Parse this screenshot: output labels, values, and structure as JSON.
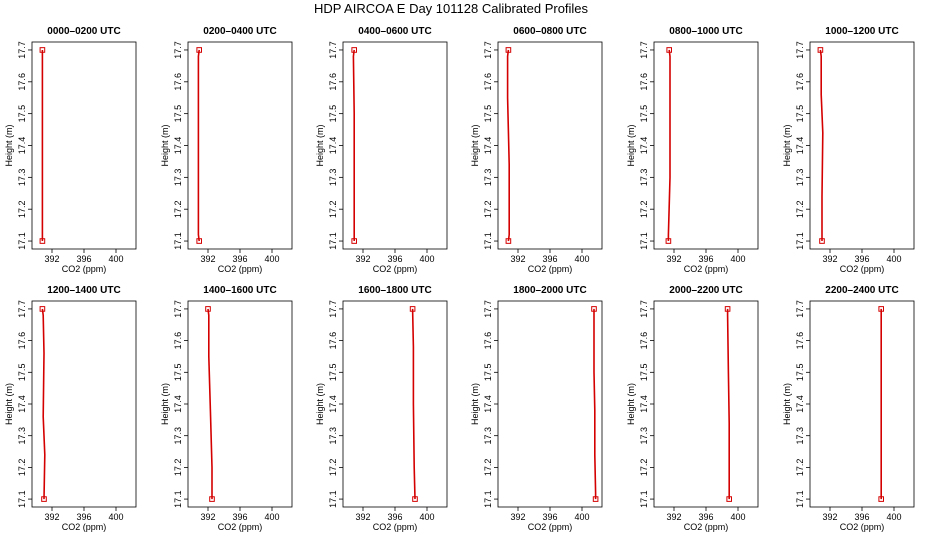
{
  "page_title": "HDP AIRCOA E  Day 101128  Calibrated Profiles",
  "shared_axes": {
    "xlabel": "CO2 (ppm)",
    "ylabel": "Height (m)",
    "xlim": [
      389.5,
      402.5
    ],
    "ylim": [
      17.075,
      17.725
    ],
    "x_ticks": [
      392,
      396,
      400
    ],
    "y_ticks": [
      17.1,
      17.2,
      17.3,
      17.4,
      17.5,
      17.6,
      17.7
    ],
    "line_color": "#d40000",
    "marker_color": "#d40000",
    "grid": false
  },
  "chart_data": [
    {
      "type": "line",
      "title": "0000–0200 UTC",
      "xlabel": "CO2 (ppm)",
      "ylabel": "Height (m)",
      "points": [
        {
          "x": 390.8,
          "y": 17.7
        },
        {
          "x": 390.8,
          "y": 17.1
        }
      ]
    },
    {
      "type": "line",
      "title": "0200–0400 UTC",
      "xlabel": "CO2 (ppm)",
      "ylabel": "Height (m)",
      "points": [
        {
          "x": 390.9,
          "y": 17.7
        },
        {
          "x": 390.8,
          "y": 17.68
        },
        {
          "x": 390.8,
          "y": 17.12
        },
        {
          "x": 390.9,
          "y": 17.1
        }
      ]
    },
    {
      "type": "line",
      "title": "0400–0600 UTC",
      "xlabel": "CO2 (ppm)",
      "ylabel": "Height (m)",
      "points": [
        {
          "x": 390.9,
          "y": 17.7
        },
        {
          "x": 390.8,
          "y": 17.68
        },
        {
          "x": 390.9,
          "y": 17.5
        },
        {
          "x": 390.9,
          "y": 17.12
        },
        {
          "x": 390.9,
          "y": 17.1
        }
      ]
    },
    {
      "type": "line",
      "title": "0600–0800 UTC",
      "xlabel": "CO2 (ppm)",
      "ylabel": "Height (m)",
      "points": [
        {
          "x": 390.8,
          "y": 17.7
        },
        {
          "x": 390.7,
          "y": 17.68
        },
        {
          "x": 390.7,
          "y": 17.55
        },
        {
          "x": 390.9,
          "y": 17.34
        },
        {
          "x": 390.9,
          "y": 17.12
        },
        {
          "x": 390.8,
          "y": 17.1
        }
      ]
    },
    {
      "type": "line",
      "title": "0800–1000 UTC",
      "xlabel": "CO2 (ppm)",
      "ylabel": "Height (m)",
      "points": [
        {
          "x": 391.4,
          "y": 17.7
        },
        {
          "x": 391.5,
          "y": 17.68
        },
        {
          "x": 391.5,
          "y": 17.3
        },
        {
          "x": 391.3,
          "y": 17.12
        },
        {
          "x": 391.3,
          "y": 17.1
        }
      ]
    },
    {
      "type": "line",
      "title": "1000–1200 UTC",
      "xlabel": "CO2 (ppm)",
      "ylabel": "Height (m)",
      "points": [
        {
          "x": 390.8,
          "y": 17.7
        },
        {
          "x": 390.9,
          "y": 17.68
        },
        {
          "x": 390.9,
          "y": 17.56
        },
        {
          "x": 391.1,
          "y": 17.44
        },
        {
          "x": 391.0,
          "y": 17.24
        },
        {
          "x": 391.0,
          "y": 17.1
        }
      ]
    },
    {
      "type": "line",
      "title": "1200–1400 UTC",
      "xlabel": "CO2 (ppm)",
      "ylabel": "Height (m)",
      "points": [
        {
          "x": 390.8,
          "y": 17.7
        },
        {
          "x": 390.9,
          "y": 17.68
        },
        {
          "x": 391.0,
          "y": 17.56
        },
        {
          "x": 390.9,
          "y": 17.36
        },
        {
          "x": 391.1,
          "y": 17.24
        },
        {
          "x": 391.0,
          "y": 17.1
        }
      ]
    },
    {
      "type": "line",
      "title": "1400–1600 UTC",
      "xlabel": "CO2 (ppm)",
      "ylabel": "Height (m)",
      "points": [
        {
          "x": 392.0,
          "y": 17.7
        },
        {
          "x": 392.1,
          "y": 17.68
        },
        {
          "x": 392.1,
          "y": 17.55
        },
        {
          "x": 392.3,
          "y": 17.38
        },
        {
          "x": 392.5,
          "y": 17.2
        },
        {
          "x": 392.5,
          "y": 17.1
        }
      ]
    },
    {
      "type": "line",
      "title": "1600–1800 UTC",
      "xlabel": "CO2 (ppm)",
      "ylabel": "Height (m)",
      "points": [
        {
          "x": 398.2,
          "y": 17.7
        },
        {
          "x": 398.3,
          "y": 17.58
        },
        {
          "x": 398.3,
          "y": 17.4
        },
        {
          "x": 398.4,
          "y": 17.2
        },
        {
          "x": 398.5,
          "y": 17.1
        }
      ]
    },
    {
      "type": "line",
      "title": "1800–2000 UTC",
      "xlabel": "CO2 (ppm)",
      "ylabel": "Height (m)",
      "points": [
        {
          "x": 401.5,
          "y": 17.7
        },
        {
          "x": 401.5,
          "y": 17.5
        },
        {
          "x": 401.6,
          "y": 17.38
        },
        {
          "x": 401.6,
          "y": 17.24
        },
        {
          "x": 401.7,
          "y": 17.12
        },
        {
          "x": 401.7,
          "y": 17.1
        }
      ]
    },
    {
      "type": "line",
      "title": "2000–2200 UTC",
      "xlabel": "CO2 (ppm)",
      "ylabel": "Height (m)",
      "points": [
        {
          "x": 398.7,
          "y": 17.7
        },
        {
          "x": 398.7,
          "y": 17.68
        },
        {
          "x": 398.8,
          "y": 17.5
        },
        {
          "x": 398.9,
          "y": 17.34
        },
        {
          "x": 398.9,
          "y": 17.18
        },
        {
          "x": 398.9,
          "y": 17.1
        }
      ]
    },
    {
      "type": "line",
      "title": "2200–2400 UTC",
      "xlabel": "CO2 (ppm)",
      "ylabel": "Height (m)",
      "points": [
        {
          "x": 398.4,
          "y": 17.7
        },
        {
          "x": 398.4,
          "y": 17.68
        },
        {
          "x": 398.4,
          "y": 17.26
        },
        {
          "x": 398.4,
          "y": 17.1
        }
      ]
    }
  ]
}
